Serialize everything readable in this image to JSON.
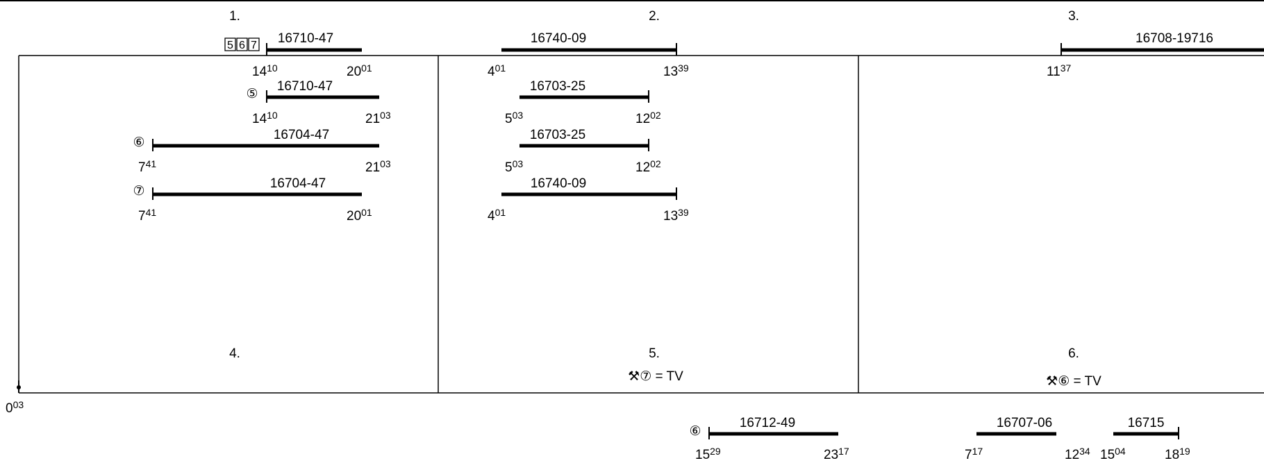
{
  "columns": [
    {
      "number": "1.",
      "header": {
        "train": "16710-47",
        "marks": [
          "5",
          "6",
          "7"
        ],
        "start": {
          "h": "14",
          "m": "10"
        },
        "end": {
          "h": "20",
          "m": "01"
        }
      },
      "rows": [
        {
          "marker": "⑤",
          "train": "16710-47",
          "start": {
            "h": "14",
            "m": "10"
          },
          "end": {
            "h": "21",
            "m": "03"
          }
        },
        {
          "marker": "⑥",
          "train": "16704-47",
          "start": {
            "h": "7",
            "m": "41"
          },
          "end": {
            "h": "21",
            "m": "03"
          }
        },
        {
          "marker": "⑦",
          "train": "16704-47",
          "start": {
            "h": "7",
            "m": "41"
          },
          "end": {
            "h": "20",
            "m": "01"
          }
        }
      ]
    },
    {
      "number": "2.",
      "header": {
        "train": "16740-09",
        "start": {
          "h": "4",
          "m": "01"
        },
        "end": {
          "h": "13",
          "m": "39"
        }
      },
      "rows": [
        {
          "train": "16703-25",
          "start": {
            "h": "5",
            "m": "03"
          },
          "end": {
            "h": "12",
            "m": "02"
          }
        },
        {
          "train": "16703-25",
          "start": {
            "h": "5",
            "m": "03"
          },
          "end": {
            "h": "12",
            "m": "02"
          }
        },
        {
          "train": "16740-09",
          "start": {
            "h": "4",
            "m": "01"
          },
          "end": {
            "h": "13",
            "m": "39"
          }
        }
      ]
    },
    {
      "number": "3.",
      "header": {
        "train": "16708-19716",
        "start": {
          "h": "11",
          "m": "37"
        }
      },
      "rows": []
    }
  ],
  "lower_columns": [
    {
      "number": "4."
    },
    {
      "number": "5.",
      "note": "⚒⑦ = TV"
    },
    {
      "number": "6.",
      "note": "⚒⑥ = TV"
    }
  ],
  "origin_time": {
    "h": "0",
    "m": "03"
  },
  "bottom_rows": [
    {
      "marker": "⑥",
      "train": "16712-49",
      "start": {
        "h": "15",
        "m": "29"
      },
      "end": {
        "h": "23",
        "m": "17"
      }
    },
    {
      "train": "16707-06",
      "start": {
        "h": "7",
        "m": "17"
      },
      "end": {
        "h": "12",
        "m": "34"
      }
    },
    {
      "train": "16715",
      "start": {
        "h": "15",
        "m": "04"
      },
      "end": {
        "h": "18",
        "m": "19"
      }
    }
  ]
}
